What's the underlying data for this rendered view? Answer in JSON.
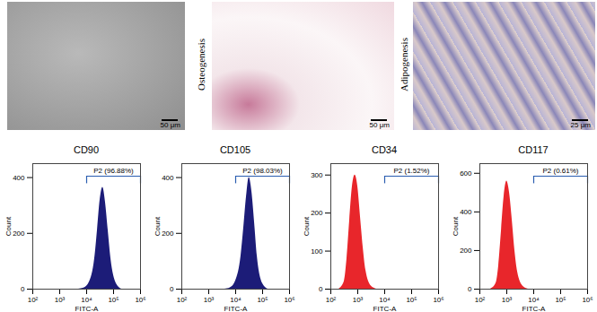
{
  "images": [
    {
      "scale_bar": "50 μm"
    },
    {
      "label": "Osteogenesis",
      "scale_bar": "50 μm"
    },
    {
      "label": "Adipogenesis",
      "scale_bar": "25 μm"
    }
  ],
  "chart_data": [
    {
      "type": "area",
      "title": "CD90",
      "x_label": "FITC-A",
      "y_label": "Count",
      "log": "x",
      "color": "#1c1c78",
      "x": [
        5012,
        7943,
        12589,
        19953,
        25119,
        31623,
        39811,
        50119,
        63096,
        79433,
        125893,
        199526
      ],
      "values": [
        0,
        4,
        25,
        110,
        210,
        320,
        365,
        310,
        210,
        110,
        20,
        0
      ],
      "xlim": [
        100,
        1000000
      ],
      "xticks": [
        {
          "value": 100,
          "label": "10²"
        },
        {
          "value": 1000,
          "label": "10³"
        },
        {
          "value": 10000,
          "label": "10⁴"
        },
        {
          "value": 100000,
          "label": "10⁵"
        },
        {
          "value": 1000000,
          "label": "10⁶"
        }
      ],
      "ylim": [
        0,
        450
      ],
      "yticks": [
        0,
        200,
        400
      ],
      "gate": {
        "label": "P2 (96.88%)",
        "range": [
          10000,
          1000000
        ]
      }
    },
    {
      "type": "area",
      "title": "CD105",
      "x_label": "FITC-A",
      "y_label": "Count",
      "log": "x",
      "color": "#1c1c78",
      "x": [
        3981,
        6310,
        10000,
        15849,
        19953,
        25119,
        31623,
        39811,
        50119,
        63096,
        100000,
        158489
      ],
      "values": [
        0,
        5,
        30,
        120,
        220,
        330,
        400,
        350,
        240,
        120,
        20,
        0
      ],
      "xlim": [
        100,
        1000000
      ],
      "xticks": [
        {
          "value": 100,
          "label": "10²"
        },
        {
          "value": 1000,
          "label": "10³"
        },
        {
          "value": 10000,
          "label": "10⁴"
        },
        {
          "value": 100000,
          "label": "10⁵"
        },
        {
          "value": 1000000,
          "label": "10⁶"
        }
      ],
      "ylim": [
        0,
        450
      ],
      "yticks": [
        0,
        200,
        400
      ],
      "gate": {
        "label": "P2 (98.03%)",
        "range": [
          10000,
          1000000
        ]
      }
    },
    {
      "type": "area",
      "title": "CD34",
      "x_label": "FITC-A",
      "y_label": "Count",
      "log": "x",
      "color": "#e8262b",
      "x": [
        200,
        316,
        398,
        501,
        631,
        794,
        1000,
        1259,
        1585,
        1995,
        3162,
        5012
      ],
      "values": [
        0,
        20,
        80,
        180,
        270,
        300,
        270,
        190,
        110,
        50,
        8,
        0
      ],
      "xlim": [
        100,
        1000000
      ],
      "xticks": [
        {
          "value": 100,
          "label": "10²"
        },
        {
          "value": 1000,
          "label": "10³"
        },
        {
          "value": 10000,
          "label": "10⁴"
        },
        {
          "value": 100000,
          "label": "10⁵"
        },
        {
          "value": 1000000,
          "label": "10⁶"
        }
      ],
      "ylim": [
        0,
        330
      ],
      "yticks": [
        0,
        100,
        200,
        300
      ],
      "gate": {
        "label": "P2 (1.52%)",
        "range": [
          10000,
          1000000
        ]
      }
    },
    {
      "type": "area",
      "title": "CD117",
      "x_label": "FITC-A",
      "y_label": "Count",
      "log": "x",
      "color": "#e8262b",
      "x": [
        250,
        398,
        501,
        631,
        794,
        1000,
        1259,
        1585,
        1995,
        2512,
        3981,
        6310
      ],
      "values": [
        0,
        30,
        120,
        300,
        480,
        560,
        500,
        360,
        200,
        90,
        15,
        0
      ],
      "xlim": [
        100,
        1000000
      ],
      "xticks": [
        {
          "value": 100,
          "label": "10²"
        },
        {
          "value": 1000,
          "label": "10³"
        },
        {
          "value": 10000,
          "label": "10⁴"
        },
        {
          "value": 100000,
          "label": "10⁵"
        },
        {
          "value": 1000000,
          "label": "10⁶"
        }
      ],
      "ylim": [
        0,
        650
      ],
      "yticks": [
        0,
        200,
        400,
        600
      ],
      "gate": {
        "label": "P2 (0.61%)",
        "range": [
          10000,
          1000000
        ]
      }
    }
  ]
}
